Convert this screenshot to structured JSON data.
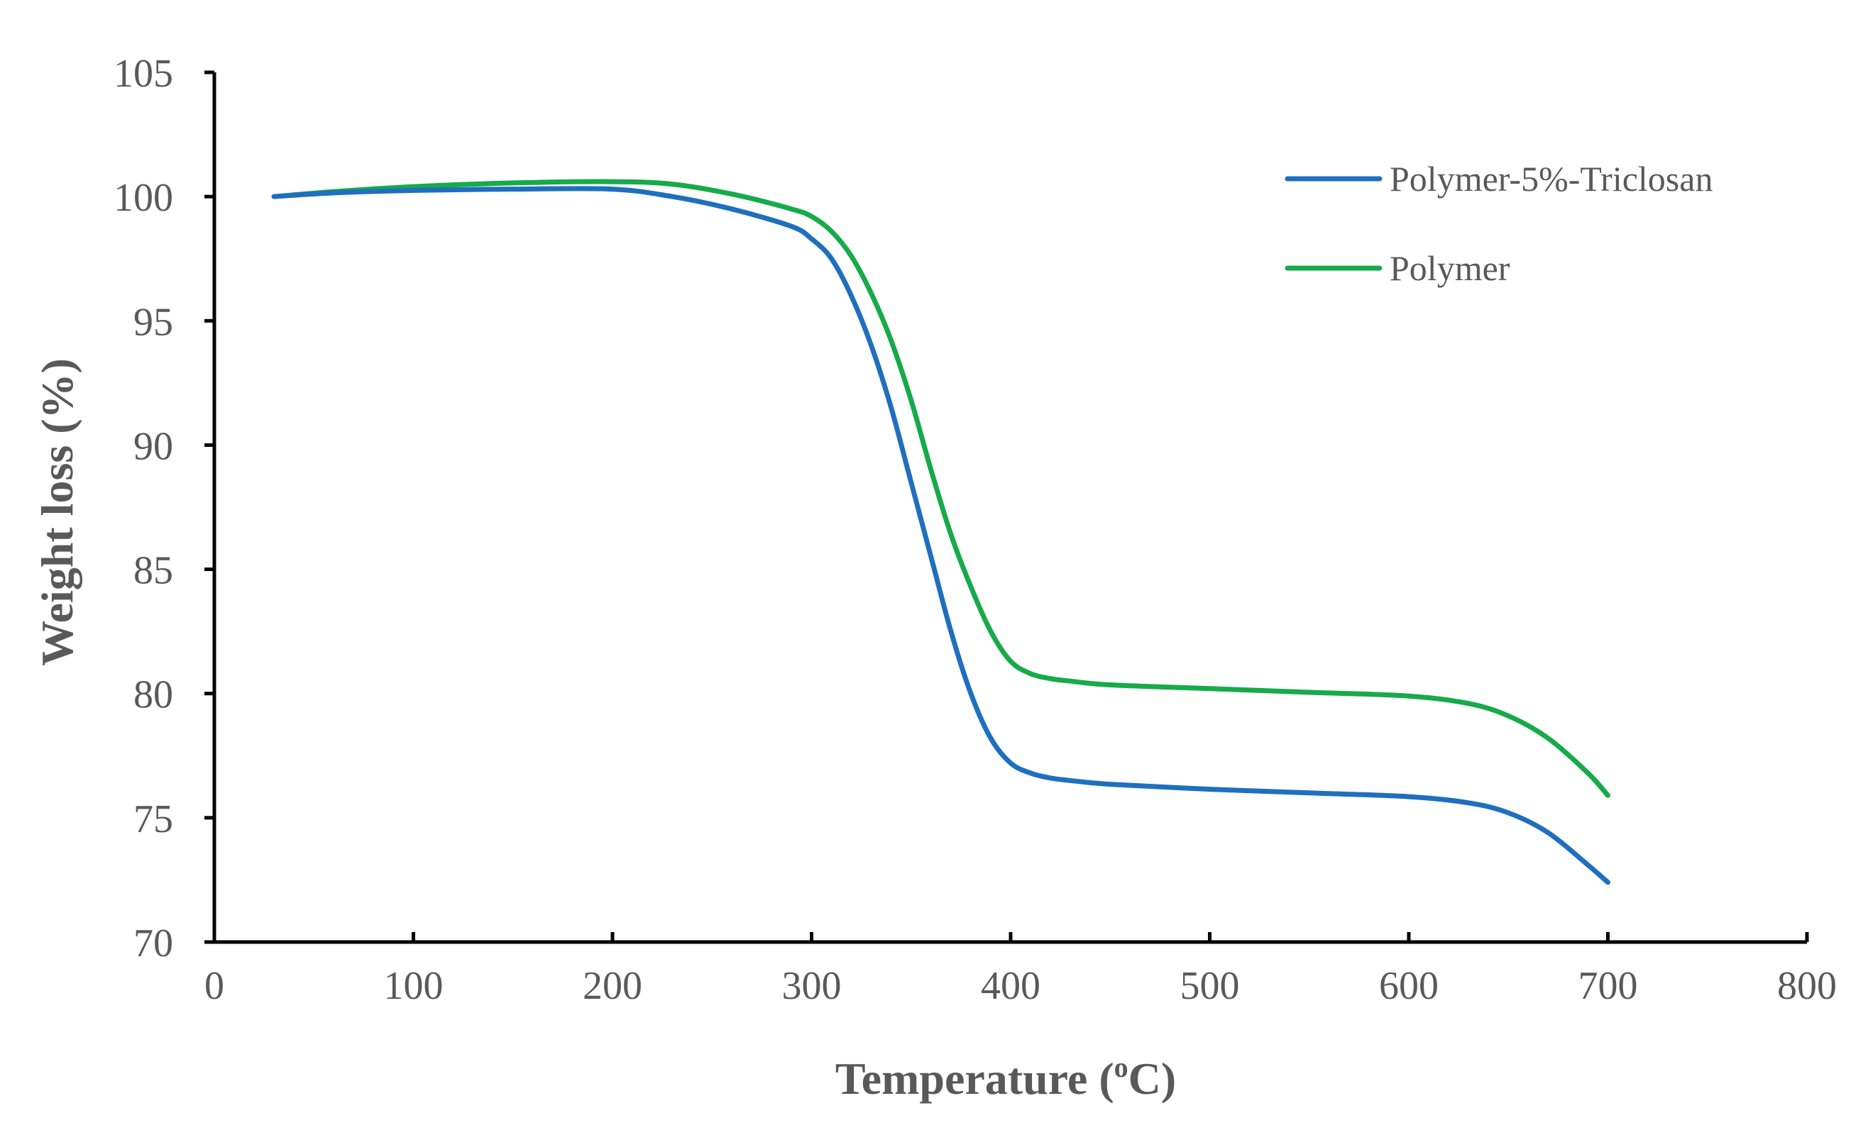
{
  "chart_data": {
    "type": "line",
    "title": "",
    "xlabel": "Temperature (",
    "xlabel_sup": "o",
    "xlabel_suffix": "C)",
    "ylabel": "Weight loss (%)",
    "xlim": [
      0,
      800
    ],
    "ylim": [
      70,
      105
    ],
    "x_ticks": [
      "0",
      "100",
      "200",
      "300",
      "400",
      "500",
      "600",
      "700",
      "800"
    ],
    "y_ticks": [
      "70",
      "75",
      "80",
      "85",
      "90",
      "95",
      "100",
      "105"
    ],
    "grid": false,
    "legend_position": "top-right",
    "series": [
      {
        "name": "Polymer-5%-Triclosan",
        "color": "#1F6FBF",
        "x": [
          30,
          60,
          100,
          150,
          200,
          230,
          260,
          290,
          300,
          310,
          320,
          330,
          340,
          350,
          360,
          370,
          380,
          390,
          400,
          410,
          420,
          430,
          450,
          500,
          550,
          600,
          630,
          650,
          670,
          690,
          700
        ],
        "y": [
          100.0,
          100.15,
          100.25,
          100.3,
          100.3,
          100.0,
          99.5,
          98.8,
          98.3,
          97.5,
          96.0,
          94.0,
          91.5,
          88.5,
          85.5,
          82.5,
          80.0,
          78.2,
          77.2,
          76.8,
          76.6,
          76.5,
          76.35,
          76.15,
          76.0,
          75.85,
          75.6,
          75.2,
          74.4,
          73.1,
          72.4
        ]
      },
      {
        "name": "Polymer",
        "color": "#17AA4A",
        "x": [
          30,
          60,
          100,
          150,
          200,
          230,
          260,
          290,
          300,
          310,
          320,
          330,
          340,
          350,
          360,
          370,
          380,
          390,
          400,
          410,
          420,
          430,
          450,
          500,
          550,
          600,
          630,
          650,
          670,
          690,
          700
        ],
        "y": [
          100.0,
          100.2,
          100.4,
          100.55,
          100.6,
          100.5,
          100.1,
          99.5,
          99.2,
          98.6,
          97.6,
          96.1,
          94.2,
          91.8,
          89.0,
          86.4,
          84.3,
          82.5,
          81.3,
          80.8,
          80.6,
          80.5,
          80.35,
          80.2,
          80.05,
          79.9,
          79.6,
          79.1,
          78.2,
          76.8,
          75.9
        ]
      }
    ]
  }
}
